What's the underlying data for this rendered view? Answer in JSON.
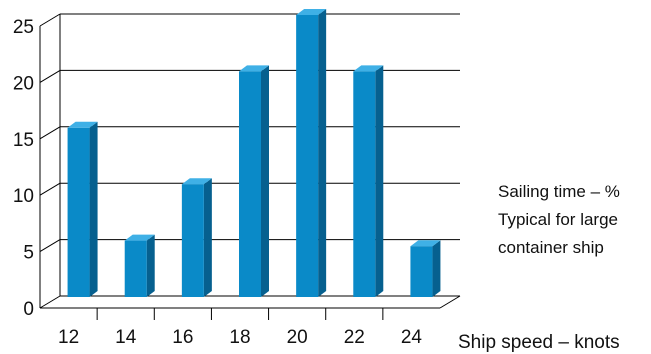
{
  "chart_data": {
    "type": "bar",
    "categories": [
      "12",
      "14",
      "16",
      "18",
      "20",
      "22",
      "24"
    ],
    "values": [
      15,
      5,
      10,
      20,
      25,
      20,
      4.5
    ],
    "ylim": [
      0,
      25
    ],
    "yticks": [
      "0",
      "5",
      "10",
      "15",
      "20",
      "25"
    ],
    "xlabel": "Ship speed – knots",
    "annotation": [
      "Sailing time – %",
      "Typical for large",
      "container ship"
    ],
    "grid": true,
    "bar_color": "#0a8ac8",
    "bar_side_color": "#06608f",
    "bar_top_color": "#3fb0e6"
  }
}
